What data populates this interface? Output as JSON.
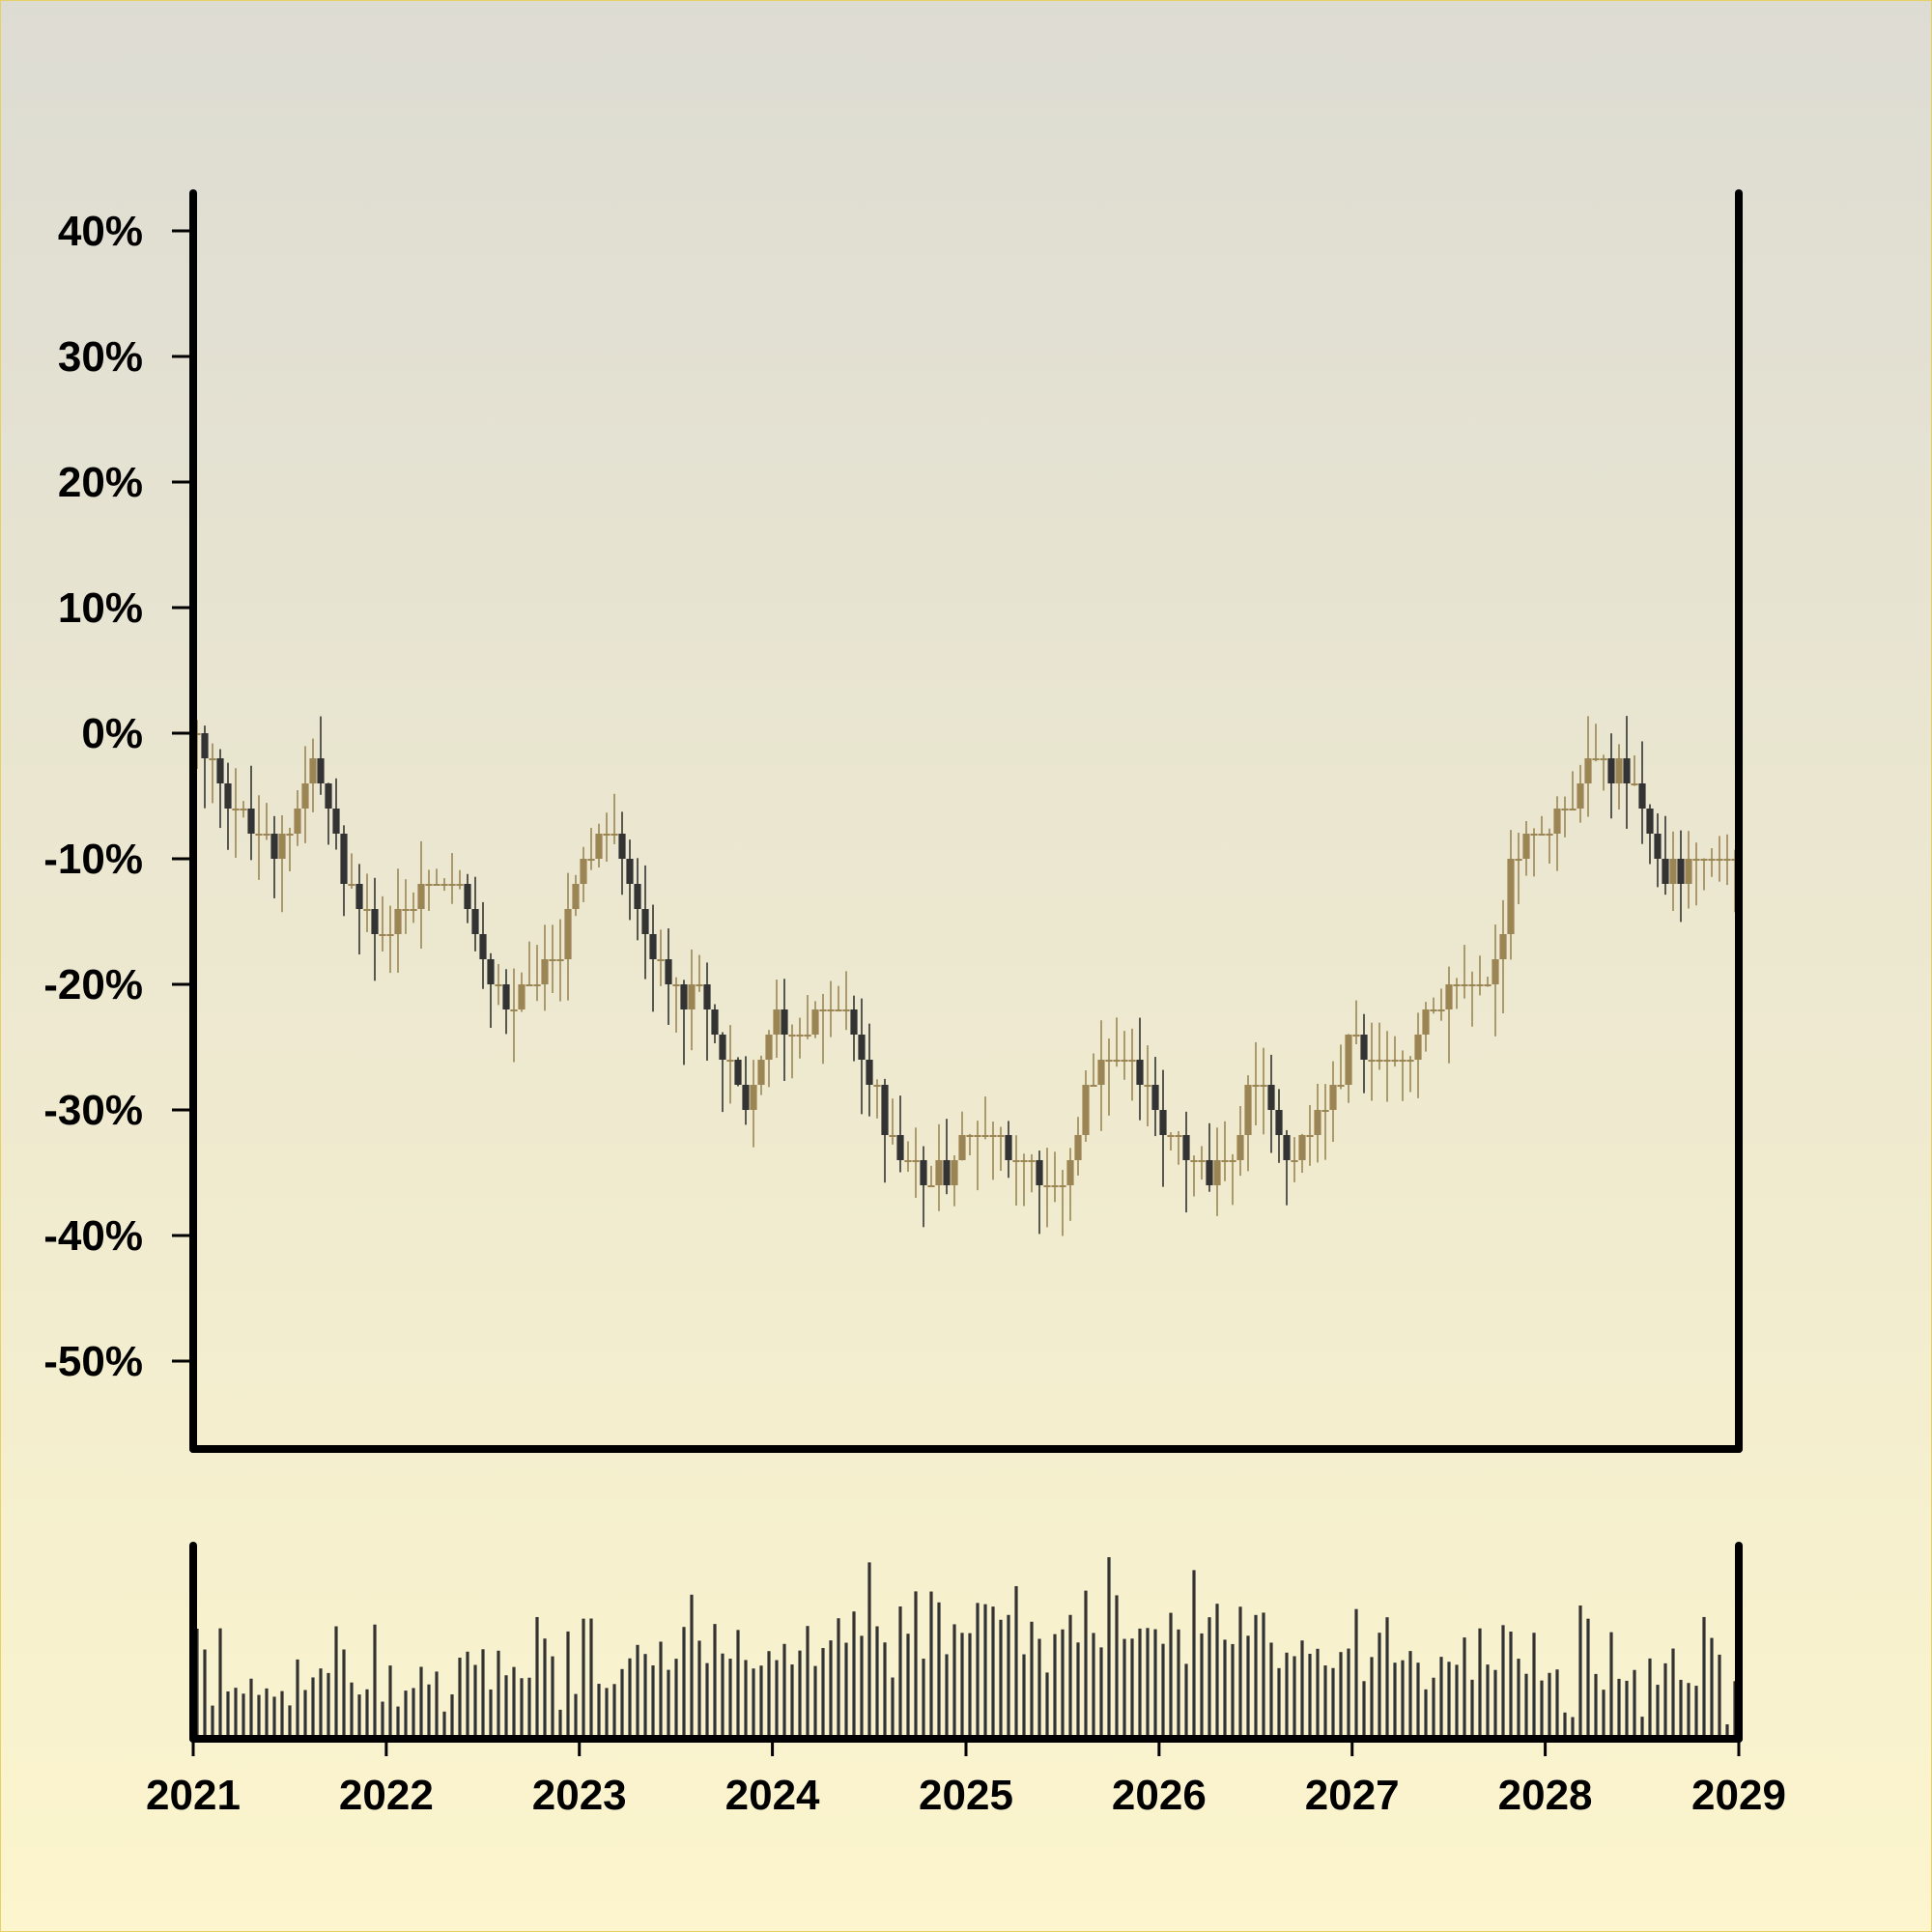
{
  "chart_data": {
    "type": "candlestick",
    "title": "",
    "xlabel": "",
    "ylabel": "",
    "ylim": [
      -57,
      43
    ],
    "xlim": [
      "2021-01-01",
      "2029-01-01"
    ],
    "y_ticks": [
      "40%",
      "30%",
      "20%",
      "10%",
      "0%",
      "-10%",
      "-20%",
      "-30%",
      "-40%",
      "-50%"
    ],
    "x_ticks": [
      "2021",
      "2022",
      "2023",
      "2024",
      "2025",
      "2026",
      "2027",
      "2028",
      "2029"
    ],
    "grid": false,
    "colors": {
      "up": "#9c8554",
      "down": "#333333",
      "axis": "#000000"
    },
    "price_path": [
      {
        "date": "2021-01-01",
        "value": 0
      },
      {
        "date": "2021-03-01",
        "value": -4
      },
      {
        "date": "2021-06-01",
        "value": -10
      },
      {
        "date": "2021-08-15",
        "value": -2
      },
      {
        "date": "2021-10-15",
        "value": -12
      },
      {
        "date": "2022-01-01",
        "value": -16
      },
      {
        "date": "2022-03-01",
        "value": -13
      },
      {
        "date": "2022-05-01",
        "value": -11
      },
      {
        "date": "2022-08-15",
        "value": -22
      },
      {
        "date": "2022-11-15",
        "value": -18
      },
      {
        "date": "2023-01-01",
        "value": -11
      },
      {
        "date": "2023-03-01",
        "value": -7
      },
      {
        "date": "2023-06-01",
        "value": -19
      },
      {
        "date": "2023-08-15",
        "value": -21
      },
      {
        "date": "2023-11-15",
        "value": -30
      },
      {
        "date": "2024-01-01",
        "value": -23
      },
      {
        "date": "2024-03-01",
        "value": -24
      },
      {
        "date": "2024-05-01",
        "value": -21
      },
      {
        "date": "2024-08-01",
        "value": -31
      },
      {
        "date": "2024-10-15",
        "value": -36
      },
      {
        "date": "2025-01-01",
        "value": -33
      },
      {
        "date": "2025-03-01",
        "value": -31
      },
      {
        "date": "2025-06-15",
        "value": -38
      },
      {
        "date": "2025-08-15",
        "value": -29
      },
      {
        "date": "2025-10-15",
        "value": -25
      },
      {
        "date": "2026-01-01",
        "value": -31
      },
      {
        "date": "2026-04-15",
        "value": -36
      },
      {
        "date": "2026-07-01",
        "value": -28
      },
      {
        "date": "2026-09-15",
        "value": -34
      },
      {
        "date": "2027-01-01",
        "value": -25
      },
      {
        "date": "2027-04-01",
        "value": -26
      },
      {
        "date": "2027-07-01",
        "value": -21
      },
      {
        "date": "2027-10-01",
        "value": -19
      },
      {
        "date": "2027-11-01",
        "value": -9
      },
      {
        "date": "2028-01-01",
        "value": -9
      },
      {
        "date": "2028-03-15",
        "value": -3
      },
      {
        "date": "2028-06-01",
        "value": -3
      },
      {
        "date": "2028-08-15",
        "value": -11
      },
      {
        "date": "2029-01-01",
        "value": -9
      }
    ],
    "volume_note_scale": "relative 0-1",
    "volume_peak_dates": [
      "2025-04-01",
      "2025-05-15",
      "2025-11-01",
      "2026-01-01"
    ]
  }
}
